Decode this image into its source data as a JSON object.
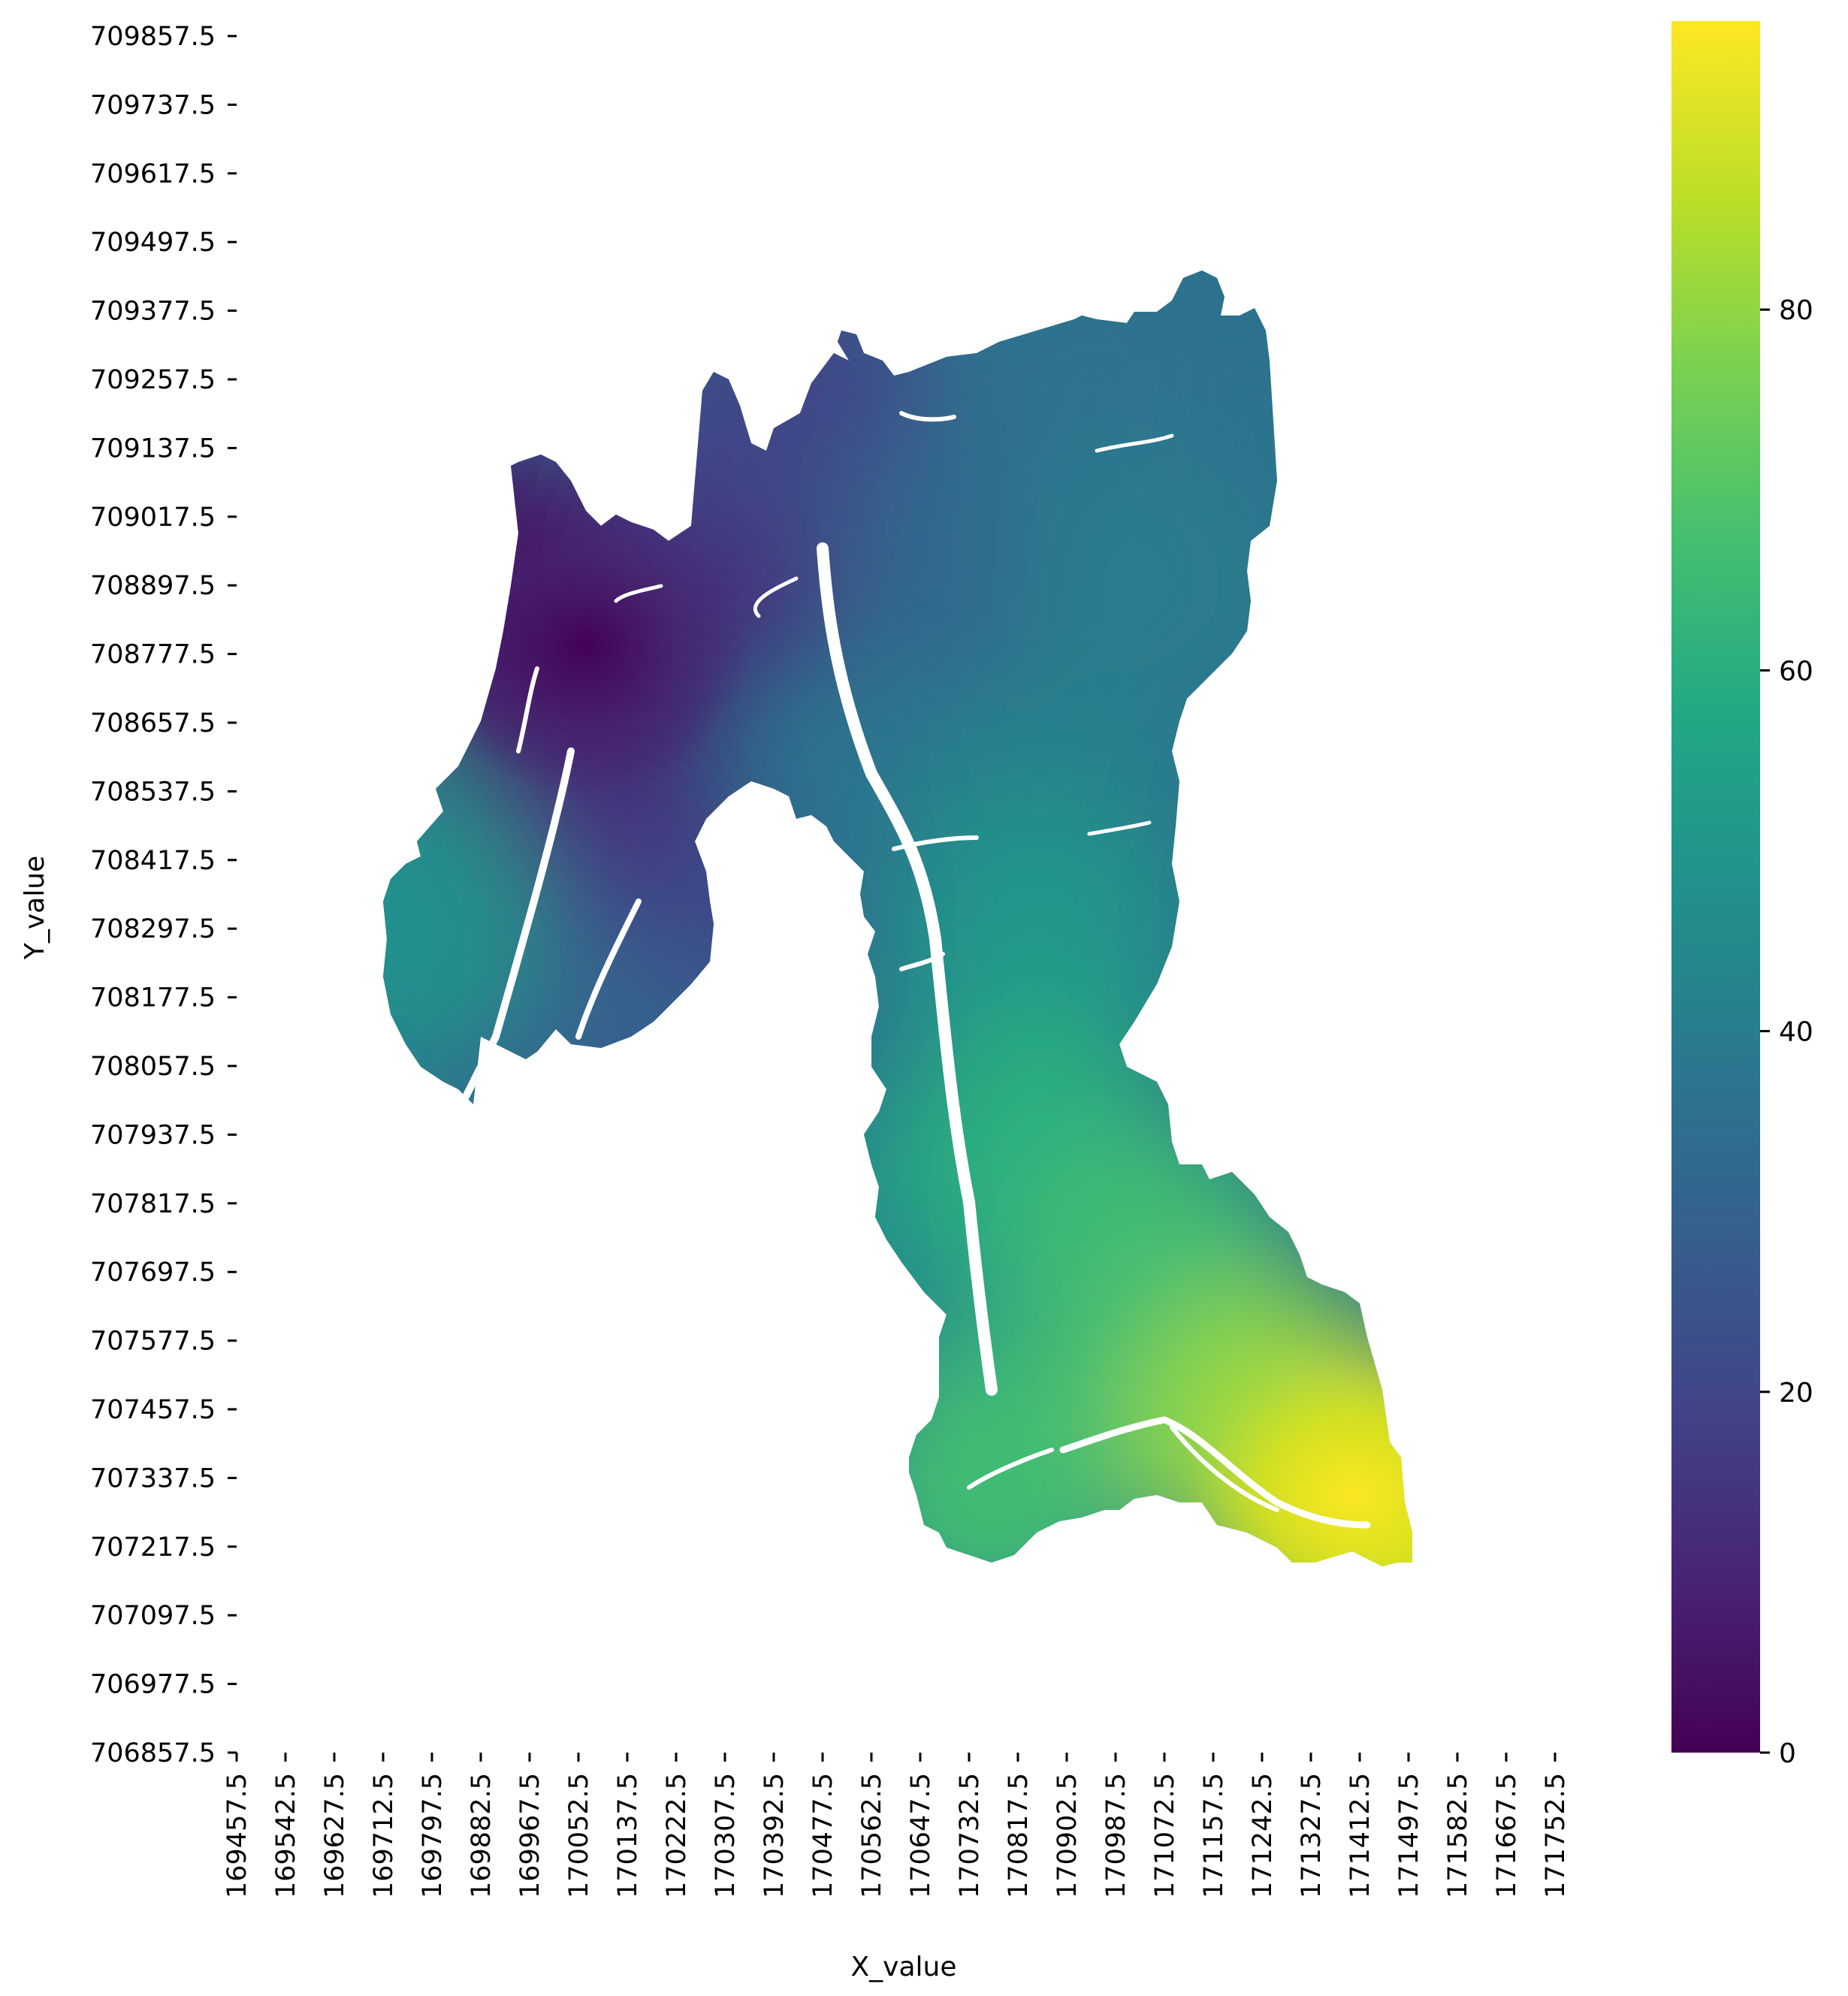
{
  "chart_data": {
    "type": "heatmap",
    "xlabel": "X_value",
    "ylabel": "Y_value",
    "x_ticks": [
      "169457.5",
      "169542.5",
      "169627.5",
      "169712.5",
      "169797.5",
      "169882.5",
      "169967.5",
      "170052.5",
      "170137.5",
      "170222.5",
      "170307.5",
      "170392.5",
      "170477.5",
      "170562.5",
      "170647.5",
      "170732.5",
      "170817.5",
      "170902.5",
      "170987.5",
      "171072.5",
      "171157.5",
      "171242.5",
      "171327.5",
      "171412.5",
      "171497.5",
      "171582.5",
      "171667.5",
      "171752.5"
    ],
    "y_ticks": [
      "709857.5",
      "709737.5",
      "709617.5",
      "709497.5",
      "709377.5",
      "709257.5",
      "709137.5",
      "709017.5",
      "708897.5",
      "708777.5",
      "708657.5",
      "708537.5",
      "708417.5",
      "708297.5",
      "708177.5",
      "708057.5",
      "707937.5",
      "707817.5",
      "707697.5",
      "707577.5",
      "707457.5",
      "707337.5",
      "707217.5",
      "707097.5",
      "706977.5",
      "706857.5"
    ],
    "colorbar": {
      "colormap": "viridis",
      "range": [
        0,
        96
      ],
      "ticks": [
        "0",
        "20",
        "40",
        "60",
        "80"
      ]
    },
    "grid": false,
    "value_samples": [
      {
        "x": 170052.5,
        "y": 708777.5,
        "v": 1
      },
      {
        "x": 169950,
        "y": 708890,
        "v": 4
      },
      {
        "x": 170300,
        "y": 708980,
        "v": 14
      },
      {
        "x": 170100,
        "y": 708400,
        "v": 14
      },
      {
        "x": 170200,
        "y": 708200,
        "v": 19
      },
      {
        "x": 170420,
        "y": 709220,
        "v": 20
      },
      {
        "x": 170100,
        "y": 708050,
        "v": 30
      },
      {
        "x": 169750,
        "y": 708300,
        "v": 48
      },
      {
        "x": 170750,
        "y": 708950,
        "v": 32
      },
      {
        "x": 170950,
        "y": 709250,
        "v": 36
      },
      {
        "x": 171050,
        "y": 708900,
        "v": 40
      },
      {
        "x": 170850,
        "y": 708500,
        "v": 42
      },
      {
        "x": 170850,
        "y": 708250,
        "v": 51
      },
      {
        "x": 170640,
        "y": 707800,
        "v": 45
      },
      {
        "x": 170850,
        "y": 707900,
        "v": 60
      },
      {
        "x": 171050,
        "y": 707700,
        "v": 66
      },
      {
        "x": 170780,
        "y": 707330,
        "v": 66
      },
      {
        "x": 171250,
        "y": 707430,
        "v": 80
      },
      {
        "x": 171470,
        "y": 707280,
        "v": 94
      }
    ]
  }
}
